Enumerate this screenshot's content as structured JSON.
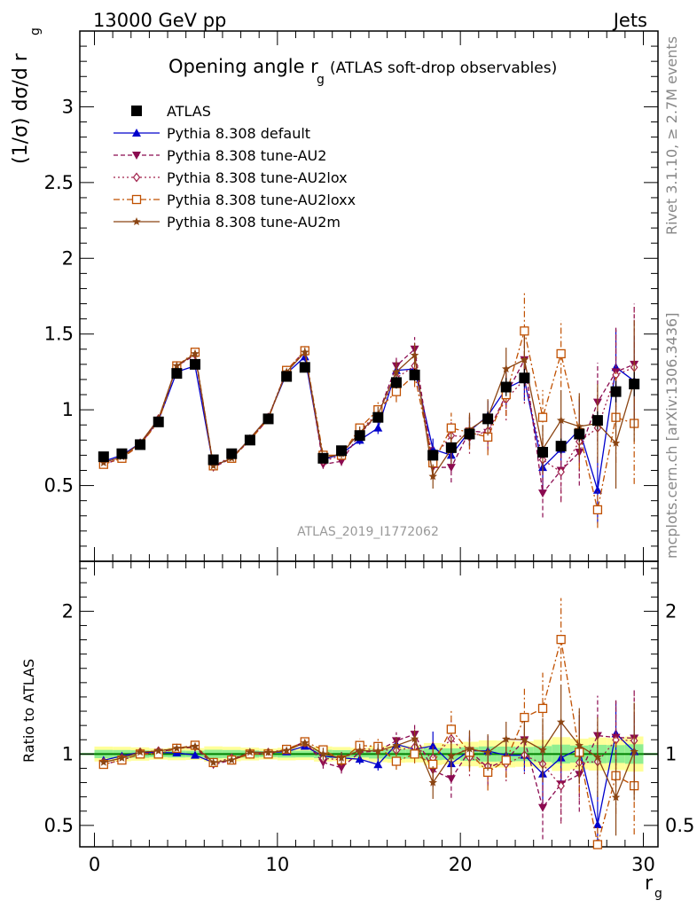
{
  "header": {
    "left": "13000 GeV pp",
    "right": "Jets"
  },
  "side_labels": {
    "rivet": "Rivet 3.1.10, ≥ 2.7M events",
    "mcplots": "mcplots.cern.ch [arXiv:1306.3436]"
  },
  "watermark": "ATLAS_2019_I1772062",
  "main_title": {
    "text": "Opening angle r",
    "sub": "g",
    "suffix": "(ATLAS soft-drop observables)"
  },
  "ylabel_top": "(1/σ) dσ/d r",
  "ylabel_top_sub": "g",
  "ylabel_bottom": "Ratio to ATLAS",
  "xlabel": "r",
  "xlabel_sub": "g",
  "colors": {
    "atlas": "#000000",
    "default": "#0000cc",
    "au2": "#8b0a50",
    "au2lox": "#a0204a",
    "au2loxx": "#c05000",
    "au2m": "#8b4513",
    "band_inner": "#90ee90",
    "band_outer": "#ffff99",
    "ref_line": "#008000"
  },
  "chart_data": [
    {
      "type": "scatter",
      "title": "Opening angle r_g (ATLAS soft-drop observables)",
      "xlabel": "r_g",
      "ylabel": "(1/σ) dσ/d r_g",
      "xlim": [
        -0.8,
        30.8
      ],
      "ylim": [
        0,
        3.5
      ],
      "yticks": [
        "0.5",
        "1",
        "1.5",
        "2",
        "2.5",
        "3"
      ],
      "xticks": [
        "0",
        "10",
        "20",
        "30"
      ],
      "legend_position": "top-left",
      "x": [
        0.5,
        1.5,
        2.5,
        3.5,
        4.5,
        5.5,
        6.5,
        7.5,
        8.5,
        9.5,
        10.5,
        11.5,
        12.5,
        13.5,
        14.5,
        15.5,
        16.5,
        17.5,
        18.5,
        19.5,
        20.5,
        21.5,
        22.5,
        23.5,
        24.5,
        25.5,
        26.5,
        27.5,
        28.5,
        29.5
      ],
      "series": [
        {
          "name": "ATLAS",
          "key": "atlas",
          "marker": "square-filled",
          "line": "none",
          "values": [
            0.69,
            0.71,
            0.77,
            0.92,
            1.24,
            1.3,
            0.67,
            0.71,
            0.8,
            0.94,
            1.22,
            1.28,
            0.68,
            0.73,
            0.83,
            0.95,
            1.18,
            1.23,
            0.7,
            0.75,
            0.84,
            0.94,
            1.15,
            1.21,
            0.72,
            0.76,
            0.84,
            0.93,
            1.12,
            1.17
          ],
          "errors": [
            0.02,
            0.02,
            0.02,
            0.02,
            0.03,
            0.03,
            0.02,
            0.02,
            0.02,
            0.02,
            0.03,
            0.03,
            0.02,
            0.02,
            0.02,
            0.03,
            0.04,
            0.04,
            0.03,
            0.03,
            0.04,
            0.05,
            0.06,
            0.06,
            0.04,
            0.05,
            0.05,
            0.06,
            0.07,
            0.08
          ]
        },
        {
          "name": "Pythia 8.308 default",
          "key": "default",
          "marker": "triangle-up-filled",
          "line": "solid",
          "values": [
            0.66,
            0.7,
            0.78,
            0.93,
            1.25,
            1.29,
            0.63,
            0.68,
            0.81,
            0.95,
            1.24,
            1.35,
            0.67,
            0.71,
            0.8,
            0.88,
            1.26,
            1.27,
            0.74,
            0.7,
            0.86,
            0.96,
            1.14,
            1.2,
            0.62,
            0.74,
            0.87,
            0.47,
            1.28,
            1.19
          ],
          "errors": [
            0.01,
            0.01,
            0.01,
            0.01,
            0.02,
            0.02,
            0.01,
            0.01,
            0.01,
            0.02,
            0.02,
            0.03,
            0.02,
            0.03,
            0.03,
            0.04,
            0.06,
            0.07,
            0.07,
            0.08,
            0.09,
            0.1,
            0.12,
            0.14,
            0.15,
            0.18,
            0.2,
            0.22,
            0.25,
            0.3
          ]
        },
        {
          "name": "Pythia 8.308 tune-AU2",
          "key": "au2",
          "marker": "triangle-down-filled",
          "line": "dashed",
          "values": [
            0.64,
            0.68,
            0.77,
            0.93,
            1.29,
            1.36,
            0.62,
            0.68,
            0.8,
            0.94,
            1.26,
            1.39,
            0.64,
            0.66,
            0.84,
            0.97,
            1.29,
            1.4,
            0.62,
            0.62,
            0.86,
            0.85,
            1.1,
            1.33,
            0.45,
            0.6,
            0.72,
            1.05,
            1.25,
            1.3
          ],
          "errors": [
            0.01,
            0.01,
            0.01,
            0.01,
            0.02,
            0.02,
            0.01,
            0.01,
            0.01,
            0.02,
            0.02,
            0.03,
            0.03,
            0.03,
            0.04,
            0.05,
            0.07,
            0.08,
            0.08,
            0.1,
            0.11,
            0.12,
            0.14,
            0.16,
            0.16,
            0.2,
            0.22,
            0.26,
            0.3,
            0.4
          ]
        },
        {
          "name": "Pythia 8.308 tune-AU2lox",
          "key": "au2lox",
          "marker": "diamond-open",
          "line": "dotted",
          "values": [
            0.65,
            0.69,
            0.78,
            0.94,
            1.29,
            1.37,
            0.63,
            0.69,
            0.8,
            0.95,
            1.26,
            1.38,
            0.66,
            0.7,
            0.86,
            0.98,
            1.21,
            1.29,
            0.68,
            0.83,
            0.82,
            0.86,
            1.07,
            1.2,
            0.67,
            0.59,
            0.79,
            0.88,
            1.23,
            1.28
          ],
          "errors": [
            0.01,
            0.01,
            0.01,
            0.01,
            0.02,
            0.02,
            0.01,
            0.01,
            0.01,
            0.02,
            0.02,
            0.03,
            0.03,
            0.03,
            0.04,
            0.05,
            0.07,
            0.08,
            0.08,
            0.1,
            0.11,
            0.12,
            0.14,
            0.16,
            0.16,
            0.2,
            0.22,
            0.26,
            0.3,
            0.4
          ]
        },
        {
          "name": "Pythia 8.308 tune-AU2loxx",
          "key": "au2loxx",
          "marker": "square-open",
          "line": "dashdot",
          "values": [
            0.64,
            0.68,
            0.77,
            0.92,
            1.29,
            1.38,
            0.63,
            0.68,
            0.8,
            0.94,
            1.26,
            1.39,
            0.7,
            0.7,
            0.88,
            1.0,
            1.12,
            1.23,
            0.65,
            0.88,
            0.85,
            0.82,
            1.1,
            1.52,
            0.95,
            1.37,
            0.85,
            0.34,
            0.95,
            0.91
          ],
          "errors": [
            0.01,
            0.01,
            0.01,
            0.01,
            0.02,
            0.02,
            0.01,
            0.01,
            0.01,
            0.02,
            0.02,
            0.03,
            0.03,
            0.03,
            0.04,
            0.05,
            0.07,
            0.08,
            0.08,
            0.1,
            0.11,
            0.12,
            0.14,
            0.26,
            0.18,
            0.22,
            0.24,
            0.12,
            0.3,
            0.4
          ]
        },
        {
          "name": "Pythia 8.308 tune-AU2m",
          "key": "au2m",
          "marker": "star-filled",
          "line": "solid",
          "values": [
            0.65,
            0.69,
            0.78,
            0.94,
            1.29,
            1.37,
            0.63,
            0.68,
            0.81,
            0.95,
            1.25,
            1.38,
            0.68,
            0.71,
            0.85,
            0.97,
            1.25,
            1.36,
            0.56,
            0.74,
            0.87,
            0.95,
            1.27,
            1.33,
            0.74,
            0.93,
            0.89,
            0.91,
            0.78,
            1.19
          ],
          "errors": [
            0.01,
            0.01,
            0.01,
            0.01,
            0.02,
            0.02,
            0.01,
            0.01,
            0.01,
            0.02,
            0.02,
            0.03,
            0.03,
            0.03,
            0.04,
            0.05,
            0.07,
            0.08,
            0.08,
            0.1,
            0.11,
            0.12,
            0.14,
            0.16,
            0.16,
            0.2,
            0.22,
            0.26,
            0.3,
            0.4
          ]
        }
      ]
    },
    {
      "type": "scatter",
      "title": "",
      "xlabel": "r_g",
      "ylabel": "Ratio to ATLAS",
      "xlim": [
        -0.8,
        30.8
      ],
      "ylim": [
        0.35,
        2.35
      ],
      "yticks": [
        "0.5",
        "1",
        "2"
      ],
      "reference_line": 1,
      "band_note": "ATLAS uncertainty band around 1 (inner green, outer yellow)"
    }
  ]
}
